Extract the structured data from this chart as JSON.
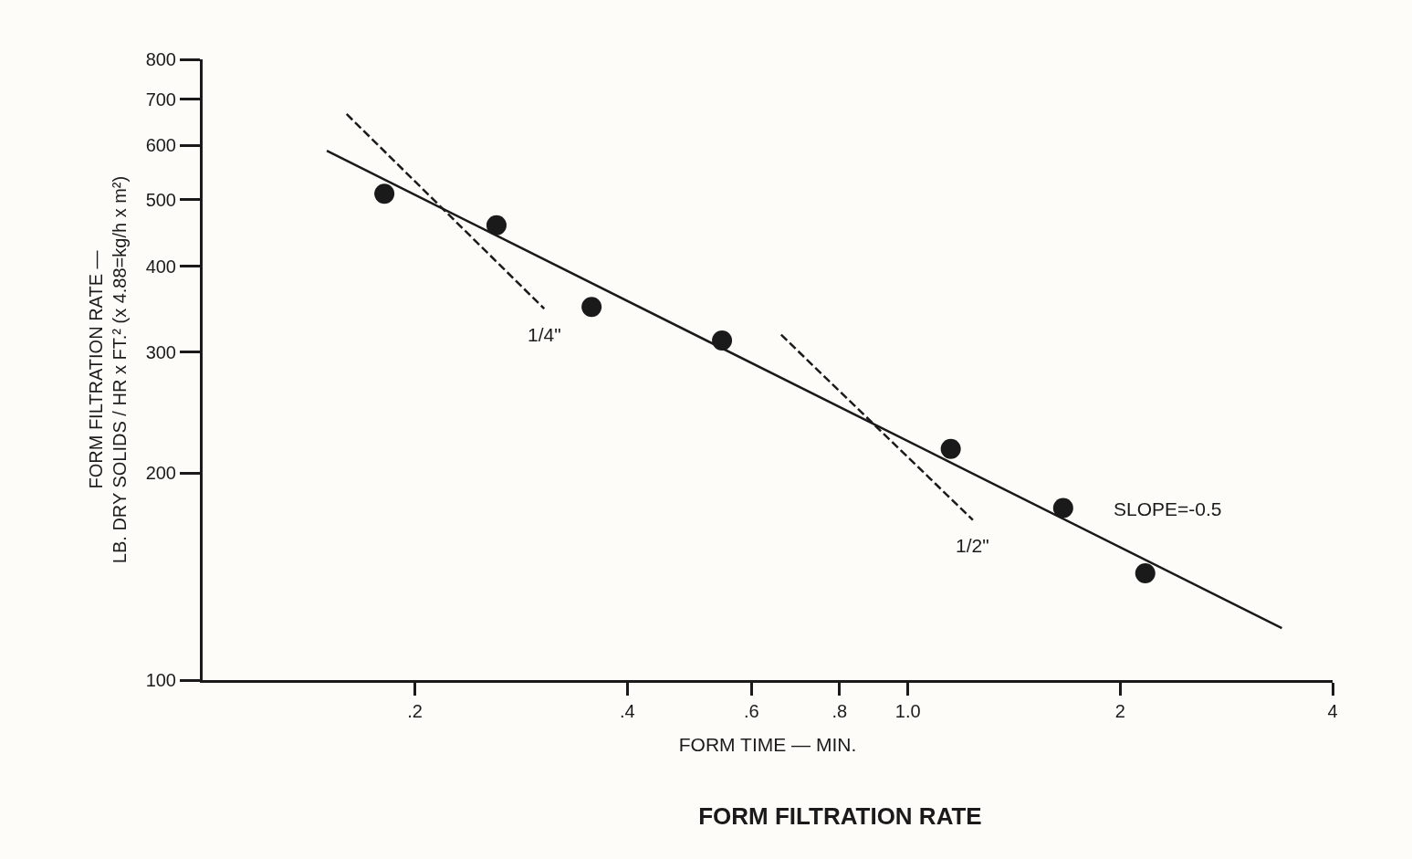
{
  "chart_data": {
    "type": "scatter",
    "title": "FORM FILTRATION RATE",
    "xlabel": "FORM TIME — MIN.",
    "ylabel": "FORM FILTRATION RATE —\nLB. DRY SOLIDS / HR x FT.² (x 4.88=kg/h x m²)",
    "log": "xy",
    "xlim": [
      0.1,
      4
    ],
    "ylim": [
      100,
      800
    ],
    "xticks": [
      {
        "value": 0.2,
        "label": ".2"
      },
      {
        "value": 0.4,
        "label": ".4"
      },
      {
        "value": 0.6,
        "label": ".6"
      },
      {
        "value": 0.8,
        "label": ".8"
      },
      {
        "value": 1.0,
        "label": "1.0"
      },
      2,
      4
    ],
    "yticks": [
      100,
      200,
      300,
      400,
      500,
      600,
      700,
      800
    ],
    "series": [
      {
        "color": "#1a1a1a",
        "marker": "circle",
        "x": [
          0.181,
          0.261,
          0.356,
          0.545,
          1.15,
          1.66,
          2.17
        ],
        "values": [
          510,
          459,
          349,
          312,
          217,
          178,
          143
        ]
      },
      {
        "type": "line",
        "name": "SLOPE=-0.5",
        "color": "#1a1a1a",
        "line_style": "solid",
        "x": [
          0.15,
          3.39
        ],
        "values": [
          589,
          119
        ]
      },
      {
        "type": "line",
        "name": "1/4\"",
        "color": "#1a1a1a",
        "line_style": "dashed",
        "x": [
          0.16,
          0.305
        ],
        "values": [
          666,
          347
        ]
      },
      {
        "type": "line",
        "name": "1/2\"",
        "color": "#1a1a1a",
        "line_style": "dashed",
        "x": [
          0.661,
          1.236
        ],
        "values": [
          318,
          171
        ]
      }
    ]
  }
}
